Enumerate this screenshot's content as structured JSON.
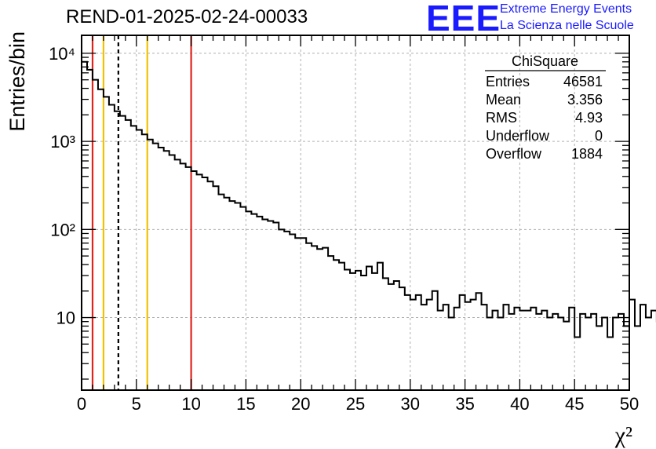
{
  "header": {
    "title": "REND-01-2025-02-24-00033",
    "logo_text": "EEE",
    "subtitle_line1": "Extreme Energy Events",
    "subtitle_line2": "La Scienza nelle Scuole"
  },
  "colors": {
    "logo": "#1a1aff",
    "red_line": "#e0241c",
    "yellow_line": "#f2c200",
    "histogram": "#000000",
    "grid": "#b0b0b0"
  },
  "chart_data": {
    "type": "bar",
    "style": "step-histogram",
    "xlabel": "χ²",
    "ylabel": "Entries/bin",
    "xlim": [
      0,
      50
    ],
    "ylim": [
      1.5,
      16000
    ],
    "yscale": "log",
    "grid": true,
    "bin_width": 0.5,
    "x_ticks": [
      0,
      5,
      10,
      15,
      20,
      25,
      30,
      35,
      40,
      45,
      50
    ],
    "x_tick_labels": [
      "0",
      "5",
      "10",
      "15",
      "20",
      "25",
      "30",
      "35",
      "40",
      "45",
      "50"
    ],
    "y_ticks": [
      10,
      100,
      1000,
      10000
    ],
    "y_tick_labels": [
      "10",
      "10²",
      "10³",
      "10⁴"
    ],
    "values": [
      8000,
      6500,
      5000,
      3900,
      3200,
      2600,
      2200,
      1950,
      1750,
      1500,
      1350,
      1200,
      1050,
      950,
      850,
      780,
      700,
      620,
      560,
      510,
      460,
      420,
      390,
      350,
      310,
      250,
      230,
      210,
      200,
      180,
      160,
      150,
      140,
      130,
      125,
      120,
      100,
      95,
      88,
      80,
      80,
      70,
      65,
      60,
      62,
      50,
      45,
      42,
      35,
      32,
      34,
      30,
      38,
      32,
      42,
      28,
      24,
      26,
      22,
      18,
      16,
      18,
      14,
      16,
      20,
      12,
      14,
      10,
      13,
      18,
      15,
      16,
      19,
      14,
      10,
      12,
      10,
      14,
      11,
      13,
      12,
      12,
      13,
      11,
      12,
      10,
      11,
      10,
      9,
      13,
      6,
      11,
      10,
      11,
      8,
      10,
      6,
      10,
      11,
      8,
      16,
      8,
      14,
      10,
      12,
      9,
      8,
      10,
      7,
      12,
      8,
      12,
      5,
      12,
      7,
      8,
      4,
      12,
      5,
      12,
      8,
      12,
      5,
      12,
      12,
      6,
      12,
      10,
      8,
      12,
      4,
      12,
      8,
      12,
      10,
      8,
      1.2,
      12,
      6,
      10,
      12,
      8,
      14,
      8,
      12,
      9,
      12,
      10,
      14,
      8
    ],
    "vertical_lines": [
      {
        "x": 1,
        "color": "red"
      },
      {
        "x": 2,
        "color": "yellow"
      },
      {
        "x": 3.356,
        "color": "black-dashed"
      },
      {
        "x": 6,
        "color": "yellow"
      },
      {
        "x": 10,
        "color": "red"
      }
    ],
    "stats_box": {
      "title": "ChiSquare",
      "rows": [
        {
          "label": "Entries",
          "value": "46581"
        },
        {
          "label": "Mean",
          "value": "3.356"
        },
        {
          "label": "RMS",
          "value": "4.93"
        },
        {
          "label": "Underflow",
          "value": "0"
        },
        {
          "label": "Overflow",
          "value": "1884"
        }
      ]
    }
  }
}
